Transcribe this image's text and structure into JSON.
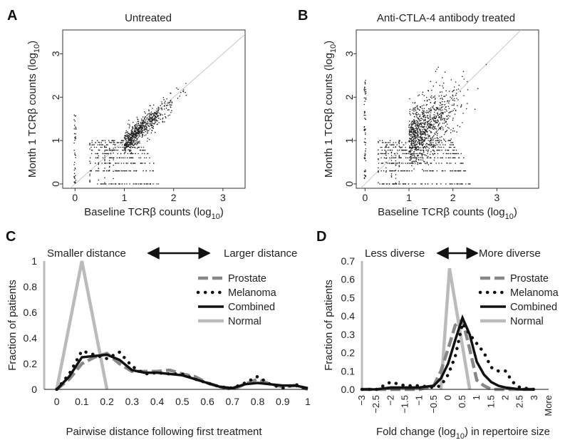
{
  "chart_data": [
    {
      "panel": "A",
      "type": "scatter",
      "title": "Untreated",
      "xlabel": "Baseline TCRβ counts (log",
      "xlabel_sub": "10",
      "xlabel_end": ")",
      "ylabel": "Month 1 TCRβ counts (log",
      "ylabel_sub": "10",
      "ylabel_end": ")",
      "xlim": [
        -0.25,
        3.45
      ],
      "ylim": [
        -0.1,
        3.55
      ],
      "xticks": [
        0,
        1,
        2,
        3
      ],
      "yticks": [
        0,
        1,
        2,
        3
      ],
      "reference_line": "y = x"
    },
    {
      "panel": "B",
      "type": "scatter",
      "title": "Anti-CTLA-4 antibody treated",
      "xlabel": "Baseline TCRβ counts (log",
      "xlabel_sub": "10",
      "xlabel_end": ")",
      "ylabel": "Month 1 TCRβ counts (log",
      "ylabel_sub": "10",
      "ylabel_end": ")",
      "xlim": [
        -0.2,
        3.95
      ],
      "ylim": [
        -0.1,
        3.55
      ],
      "xticks": [
        0,
        1,
        2,
        3
      ],
      "yticks": [
        0,
        1,
        2,
        3
      ],
      "reference_line": "y = x"
    },
    {
      "panel": "C",
      "type": "line",
      "annotation_left": "Smaller distance",
      "annotation_right": "Larger distance",
      "xlabel": "Pairwise distance following first treatment",
      "ylabel": "Fraction of patients",
      "xlim": [
        -0.05,
        1.0
      ],
      "ylim": [
        0,
        1.0
      ],
      "xticks": [
        "0",
        "0.1",
        "0.2",
        "0.3",
        "0.4",
        "0.5",
        "0.6",
        "0.7",
        "0.8",
        "0.9",
        "1"
      ],
      "xtick_values": [
        0,
        0.1,
        0.2,
        0.3,
        0.4,
        0.5,
        0.6,
        0.7,
        0.8,
        0.9,
        1.0
      ],
      "yticks": [
        "0",
        "0.2",
        "0.4",
        "0.6",
        "0.8",
        "1"
      ],
      "ytick_values": [
        0,
        0.2,
        0.4,
        0.6,
        0.8,
        1.0
      ],
      "series": [
        {
          "name": "Prostate",
          "style": "dashed",
          "color": "#888888",
          "x": [
            0,
            0.05,
            0.1,
            0.15,
            0.2,
            0.25,
            0.3,
            0.35,
            0.4,
            0.45,
            0.5,
            0.55,
            0.6,
            0.65,
            0.7,
            0.75,
            0.8,
            0.85,
            0.9,
            0.95,
            1.0
          ],
          "y": [
            0,
            0.08,
            0.2,
            0.25,
            0.28,
            0.2,
            0.14,
            0.14,
            0.14,
            0.15,
            0.12,
            0.1,
            0.05,
            0.02,
            0,
            0.04,
            0.08,
            0.04,
            0.02,
            0.03,
            0
          ]
        },
        {
          "name": "Melanoma",
          "style": "dotted",
          "color": "#111111",
          "x": [
            0,
            0.05,
            0.1,
            0.15,
            0.2,
            0.25,
            0.3,
            0.35,
            0.4,
            0.45,
            0.5,
            0.55,
            0.6,
            0.65,
            0.7,
            0.75,
            0.8,
            0.85,
            0.9,
            0.95,
            1.0
          ],
          "y": [
            0,
            0.12,
            0.3,
            0.27,
            0.24,
            0.29,
            0.18,
            0.12,
            0.13,
            0.12,
            0.12,
            0.08,
            0.05,
            0.02,
            0.01,
            0.05,
            0.1,
            0.04,
            0.01,
            0.04,
            0
          ]
        },
        {
          "name": "Combined",
          "style": "solid",
          "color": "#111111",
          "x": [
            0,
            0.05,
            0.1,
            0.15,
            0.2,
            0.25,
            0.3,
            0.35,
            0.4,
            0.45,
            0.5,
            0.55,
            0.6,
            0.65,
            0.7,
            0.75,
            0.8,
            0.85,
            0.9,
            0.95,
            1.0
          ],
          "y": [
            0,
            0.1,
            0.25,
            0.26,
            0.27,
            0.23,
            0.15,
            0.13,
            0.13,
            0.12,
            0.11,
            0.08,
            0.05,
            0.02,
            0.01,
            0.04,
            0.05,
            0.04,
            0.03,
            0.03,
            0.01
          ]
        },
        {
          "name": "Normal",
          "style": "solid",
          "color": "#bbbbbb",
          "x": [
            0,
            0.1,
            0.2
          ],
          "y": [
            0,
            1.0,
            0
          ]
        }
      ]
    },
    {
      "panel": "D",
      "type": "line",
      "annotation_left": "Less diverse",
      "annotation_right": "More diverse",
      "xlabel": "Fold change (log",
      "xlabel_sub": "10",
      "xlabel_end": ") in repertoire size",
      "ylabel": "Fraction of patients",
      "xlim": [
        -3,
        3.5
      ],
      "ylim": [
        0,
        0.7
      ],
      "xticks": [
        "−3",
        "−2.5",
        "−2",
        "−1.5",
        "−1",
        "−0.5",
        "0",
        "0.5",
        "1",
        "1.5",
        "2",
        "2.5",
        "3",
        "More"
      ],
      "xtick_values": [
        -3,
        -2.5,
        -2,
        -1.5,
        -1,
        -0.5,
        0,
        0.5,
        1,
        1.5,
        2,
        2.5,
        3,
        3.5
      ],
      "yticks": [
        "0.0",
        "0.1",
        "0.2",
        "0.3",
        "0.4",
        "0.5",
        "0.6",
        "0.7"
      ],
      "ytick_values": [
        0,
        0.1,
        0.2,
        0.3,
        0.4,
        0.5,
        0.6,
        0.7
      ],
      "series": [
        {
          "name": "Prostate",
          "style": "dashed",
          "color": "#888888",
          "x": [
            -3,
            -2.5,
            -2,
            -1.5,
            -1,
            -0.5,
            -0.25,
            0,
            0.25,
            0.5,
            0.75,
            1,
            1.25,
            1.5,
            2,
            2.5,
            3
          ],
          "y": [
            0,
            0,
            0,
            0,
            0,
            0.02,
            0.1,
            0.22,
            0.35,
            0.38,
            0.22,
            0.05,
            0.02,
            0,
            0,
            0,
            0
          ]
        },
        {
          "name": "Melanoma",
          "style": "dotted",
          "color": "#111111",
          "x": [
            -3,
            -2.5,
            -2,
            -1.5,
            -1,
            -0.5,
            -0.25,
            0,
            0.25,
            0.5,
            0.75,
            1,
            1.25,
            1.5,
            1.75,
            2,
            2.25,
            2.5,
            3
          ],
          "y": [
            0,
            0,
            0.04,
            0.02,
            0.02,
            0.01,
            0.02,
            0.08,
            0.18,
            0.36,
            0.3,
            0.25,
            0.2,
            0.12,
            0.1,
            0.1,
            0.04,
            0.01,
            0
          ]
        },
        {
          "name": "Combined",
          "style": "solid",
          "color": "#111111",
          "x": [
            -3,
            -2.5,
            -2,
            -1.5,
            -1,
            -0.5,
            -0.25,
            0,
            0.25,
            0.5,
            0.75,
            1,
            1.25,
            1.5,
            1.75,
            2,
            2.5,
            3
          ],
          "y": [
            0,
            0,
            0.01,
            0.01,
            0.01,
            0.02,
            0.06,
            0.14,
            0.27,
            0.39,
            0.3,
            0.15,
            0.08,
            0.04,
            0.02,
            0.01,
            0,
            0
          ]
        },
        {
          "name": "Normal",
          "style": "solid",
          "color": "#bbbbbb",
          "x": [
            -0.25,
            0.05,
            0.75
          ],
          "y": [
            0,
            0.66,
            0
          ]
        }
      ]
    }
  ],
  "panel_letters": [
    "A",
    "B",
    "C",
    "D"
  ]
}
